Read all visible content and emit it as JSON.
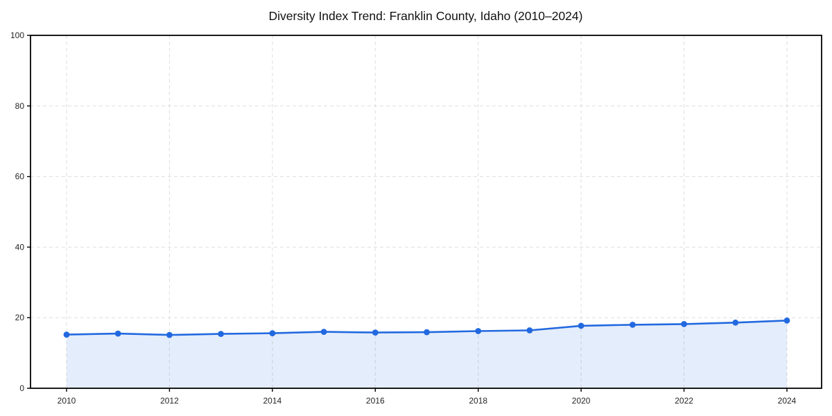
{
  "chart_data": {
    "type": "line",
    "title": "Diversity Index Trend: Franklin County, Idaho (2010–2024)",
    "x": [
      2010,
      2011,
      2012,
      2013,
      2014,
      2015,
      2016,
      2017,
      2018,
      2019,
      2020,
      2021,
      2022,
      2023,
      2024
    ],
    "series": [
      {
        "name": "Diversity Index",
        "values": [
          15.2,
          15.5,
          15.1,
          15.4,
          15.6,
          16.0,
          15.8,
          15.9,
          16.2,
          16.4,
          17.7,
          18.0,
          18.2,
          18.6,
          19.2
        ]
      }
    ],
    "xlabel": "",
    "ylabel": "",
    "ylim": [
      0,
      100
    ],
    "yticks": [
      0,
      20,
      40,
      60,
      80,
      100
    ],
    "xticks": [
      2010,
      2012,
      2014,
      2016,
      2018,
      2020,
      2022,
      2024
    ],
    "grid": true,
    "grid_style": "dashed",
    "legend_position": "none",
    "area_fill": true,
    "marker": "circle",
    "colors": {
      "line": "#2269E0",
      "fill": "#2269E01F",
      "grid": "#DEDEDE",
      "axis": "#000000",
      "tick_label": "#262626"
    }
  }
}
